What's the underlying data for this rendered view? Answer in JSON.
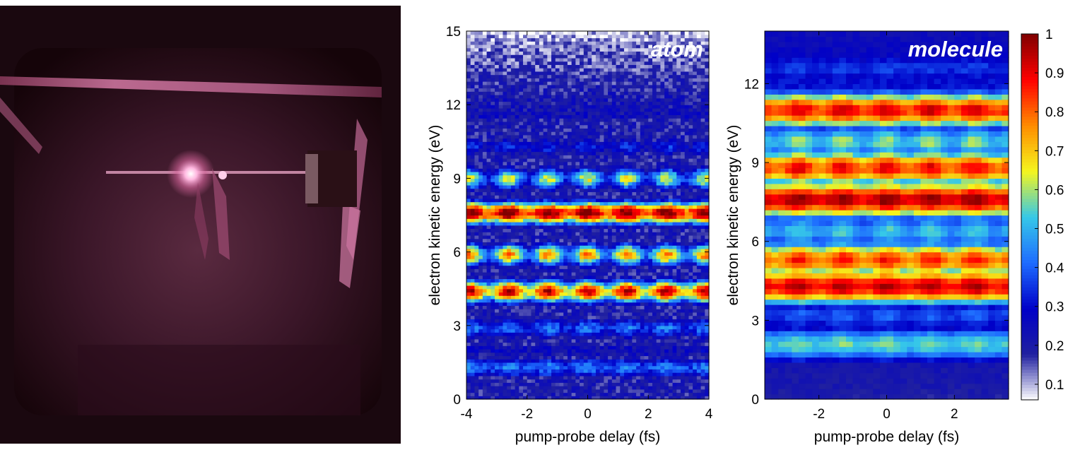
{
  "photo": {
    "subject": "vacuum-chamber-photo",
    "glow_color": "#d4649a",
    "background_color": "#1a080f"
  },
  "chart_data": [
    {
      "type": "heatmap",
      "panel_label": "atom",
      "xlabel": "pump-probe delay (fs)",
      "ylabel": "electron kinetic energy (eV)",
      "xlim": [
        -4,
        4
      ],
      "ylim": [
        0,
        15
      ],
      "xticks": [
        -4,
        -2,
        0,
        2,
        4
      ],
      "yticks": [
        0,
        3,
        6,
        9,
        12,
        15
      ],
      "oscillation_period_fs": 1.3,
      "bands": [
        {
          "energy_eV": 0.6,
          "intensity": 0.1,
          "modulation": 0.0
        },
        {
          "energy_eV": 1.3,
          "intensity": 0.4,
          "modulation": 0.1
        },
        {
          "energy_eV": 2.0,
          "intensity": 0.25,
          "modulation": 0.0
        },
        {
          "energy_eV": 2.9,
          "intensity": 0.38,
          "modulation": 0.15
        },
        {
          "energy_eV": 4.4,
          "intensity": 0.8,
          "modulation": 0.2
        },
        {
          "energy_eV": 5.9,
          "intensity": 0.6,
          "modulation": 0.3
        },
        {
          "energy_eV": 7.6,
          "intensity": 0.92,
          "modulation": 0.12
        },
        {
          "energy_eV": 9.0,
          "intensity": 0.5,
          "modulation": 0.3
        },
        {
          "energy_eV": 10.3,
          "intensity": 0.3,
          "modulation": 0.15
        }
      ],
      "background_high_energy": 0.1
    },
    {
      "type": "heatmap",
      "panel_label": "molecule",
      "xlabel": "pump-probe delay (fs)",
      "ylabel": "electron kinetic energy (eV)",
      "xlim": [
        -3.6,
        3.6
      ],
      "ylim": [
        0,
        14
      ],
      "xticks": [
        -2,
        0,
        2
      ],
      "yticks": [
        0,
        3,
        6,
        9,
        12
      ],
      "oscillation_period_fs": 1.3,
      "bands": [
        {
          "energy_eV": 0.3,
          "intensity": 0.2,
          "modulation": 0.0
        },
        {
          "energy_eV": 2.1,
          "intensity": 0.55,
          "modulation": 0.05
        },
        {
          "energy_eV": 3.2,
          "intensity": 0.38,
          "modulation": 0.08
        },
        {
          "energy_eV": 4.3,
          "intensity": 0.92,
          "modulation": 0.05
        },
        {
          "energy_eV": 5.3,
          "intensity": 0.82,
          "modulation": 0.08
        },
        {
          "energy_eV": 6.4,
          "intensity": 0.5,
          "modulation": 0.1
        },
        {
          "energy_eV": 7.6,
          "intensity": 0.95,
          "modulation": 0.05
        },
        {
          "energy_eV": 8.8,
          "intensity": 0.85,
          "modulation": 0.08
        },
        {
          "energy_eV": 9.8,
          "intensity": 0.55,
          "modulation": 0.1
        },
        {
          "energy_eV": 11.0,
          "intensity": 0.88,
          "modulation": 0.06
        },
        {
          "energy_eV": 12.6,
          "intensity": 0.35,
          "modulation": 0.04
        },
        {
          "energy_eV": 14.0,
          "intensity": 0.2,
          "modulation": 0.0
        }
      ]
    }
  ],
  "colorbar": {
    "ticks": [
      0.1,
      0.2,
      0.3,
      0.4,
      0.5,
      0.6,
      0.7,
      0.8,
      0.9,
      1
    ],
    "range": [
      0.06,
      1
    ],
    "colormap": [
      "#ffffff",
      "#2020a0",
      "#0000c8",
      "#1e6cff",
      "#36c8e8",
      "#f5f51e",
      "#ff8c00",
      "#ff0000",
      "#800000"
    ]
  }
}
